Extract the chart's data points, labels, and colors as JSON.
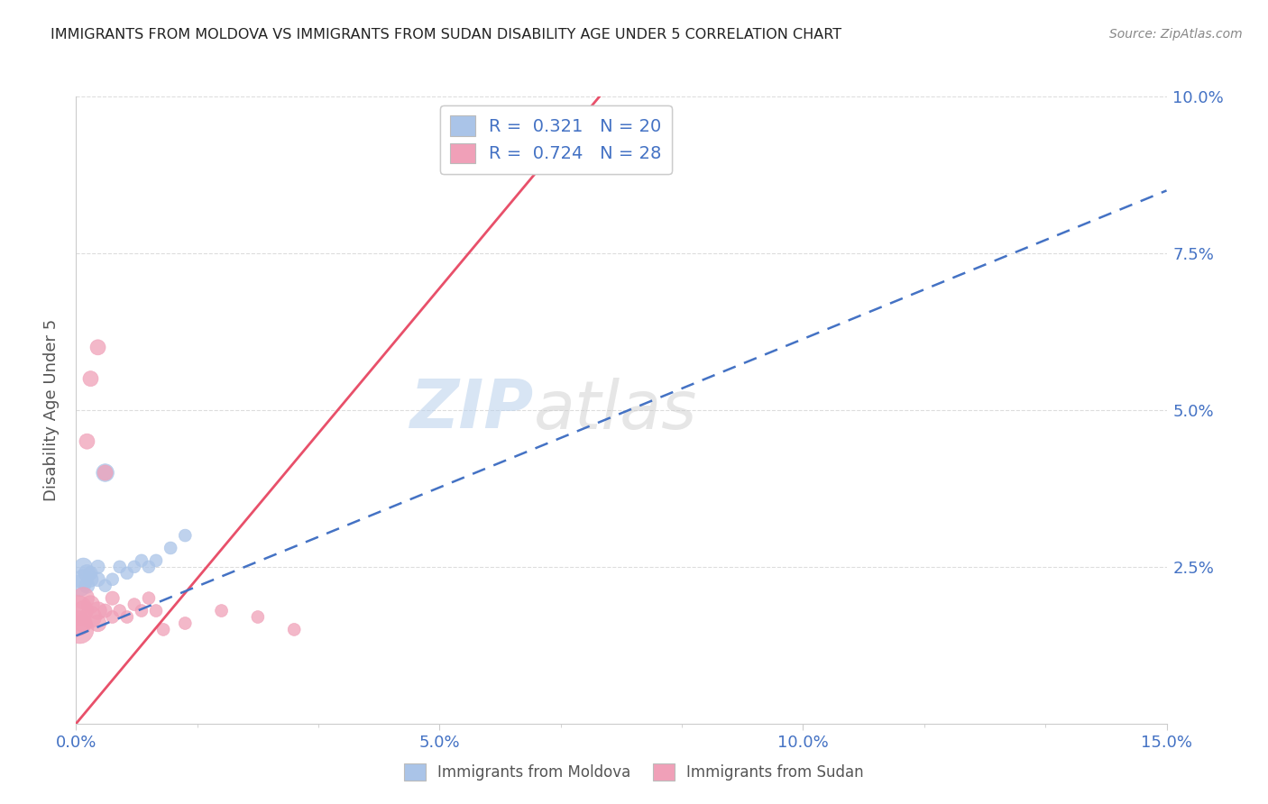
{
  "title": "IMMIGRANTS FROM MOLDOVA VS IMMIGRANTS FROM SUDAN DISABILITY AGE UNDER 5 CORRELATION CHART",
  "source": "Source: ZipAtlas.com",
  "ylabel": "Disability Age Under 5",
  "xlim": [
    0,
    0.15
  ],
  "ylim": [
    0,
    0.1
  ],
  "xtick_labels": [
    "0.0%",
    "",
    "",
    "5.0%",
    "",
    "",
    "10.0%",
    "",
    "",
    "15.0%"
  ],
  "xtick_vals": [
    0.0,
    0.0167,
    0.0333,
    0.05,
    0.0667,
    0.0833,
    0.1,
    0.1167,
    0.1333,
    0.15
  ],
  "xtick_display": [
    "0.0%",
    "5.0%",
    "10.0%",
    "15.0%"
  ],
  "xtick_display_vals": [
    0.0,
    0.05,
    0.1,
    0.15
  ],
  "ytick_labels": [
    "2.5%",
    "5.0%",
    "7.5%",
    "10.0%"
  ],
  "ytick_vals": [
    0.025,
    0.05,
    0.075,
    0.1
  ],
  "moldova_color": "#aac4e8",
  "sudan_color": "#f0a0b8",
  "moldova_line_color": "#4472c4",
  "sudan_line_color": "#e8506a",
  "r_moldova": 0.321,
  "n_moldova": 20,
  "r_sudan": 0.724,
  "n_sudan": 28,
  "watermark_zip": "ZIP",
  "watermark_atlas": "atlas",
  "moldova_scatter_x": [
    0.0005,
    0.001,
    0.001,
    0.0015,
    0.0015,
    0.002,
    0.002,
    0.003,
    0.003,
    0.004,
    0.004,
    0.005,
    0.006,
    0.007,
    0.008,
    0.009,
    0.01,
    0.011,
    0.013,
    0.015
  ],
  "moldova_scatter_y": [
    0.022,
    0.025,
    0.023,
    0.024,
    0.022,
    0.023,
    0.024,
    0.023,
    0.025,
    0.04,
    0.022,
    0.023,
    0.025,
    0.024,
    0.025,
    0.026,
    0.025,
    0.026,
    0.028,
    0.03
  ],
  "moldova_scatter_s": [
    300,
    200,
    250,
    180,
    150,
    150,
    120,
    130,
    120,
    200,
    100,
    100,
    100,
    100,
    100,
    100,
    100,
    100,
    100,
    100
  ],
  "sudan_scatter_x": [
    0.0002,
    0.0003,
    0.0005,
    0.001,
    0.001,
    0.001,
    0.0015,
    0.002,
    0.002,
    0.002,
    0.003,
    0.003,
    0.003,
    0.004,
    0.004,
    0.005,
    0.005,
    0.006,
    0.007,
    0.008,
    0.009,
    0.01,
    0.011,
    0.012,
    0.015,
    0.02,
    0.025,
    0.03
  ],
  "sudan_scatter_y": [
    0.018,
    0.016,
    0.015,
    0.02,
    0.018,
    0.016,
    0.045,
    0.019,
    0.055,
    0.017,
    0.018,
    0.06,
    0.016,
    0.04,
    0.018,
    0.02,
    0.017,
    0.018,
    0.017,
    0.019,
    0.018,
    0.02,
    0.018,
    0.015,
    0.016,
    0.018,
    0.017,
    0.015
  ],
  "sudan_scatter_s": [
    600,
    400,
    500,
    300,
    250,
    200,
    150,
    200,
    150,
    300,
    200,
    150,
    180,
    150,
    120,
    120,
    100,
    100,
    100,
    100,
    100,
    100,
    100,
    100,
    100,
    100,
    100,
    100
  ],
  "sudan_line_x0": 0.0,
  "sudan_line_y0": 0.0,
  "sudan_line_x1": 0.072,
  "sudan_line_y1": 0.1,
  "moldova_line_x0": 0.0,
  "moldova_line_y0": 0.014,
  "moldova_line_x1": 0.15,
  "moldova_line_y1": 0.085
}
